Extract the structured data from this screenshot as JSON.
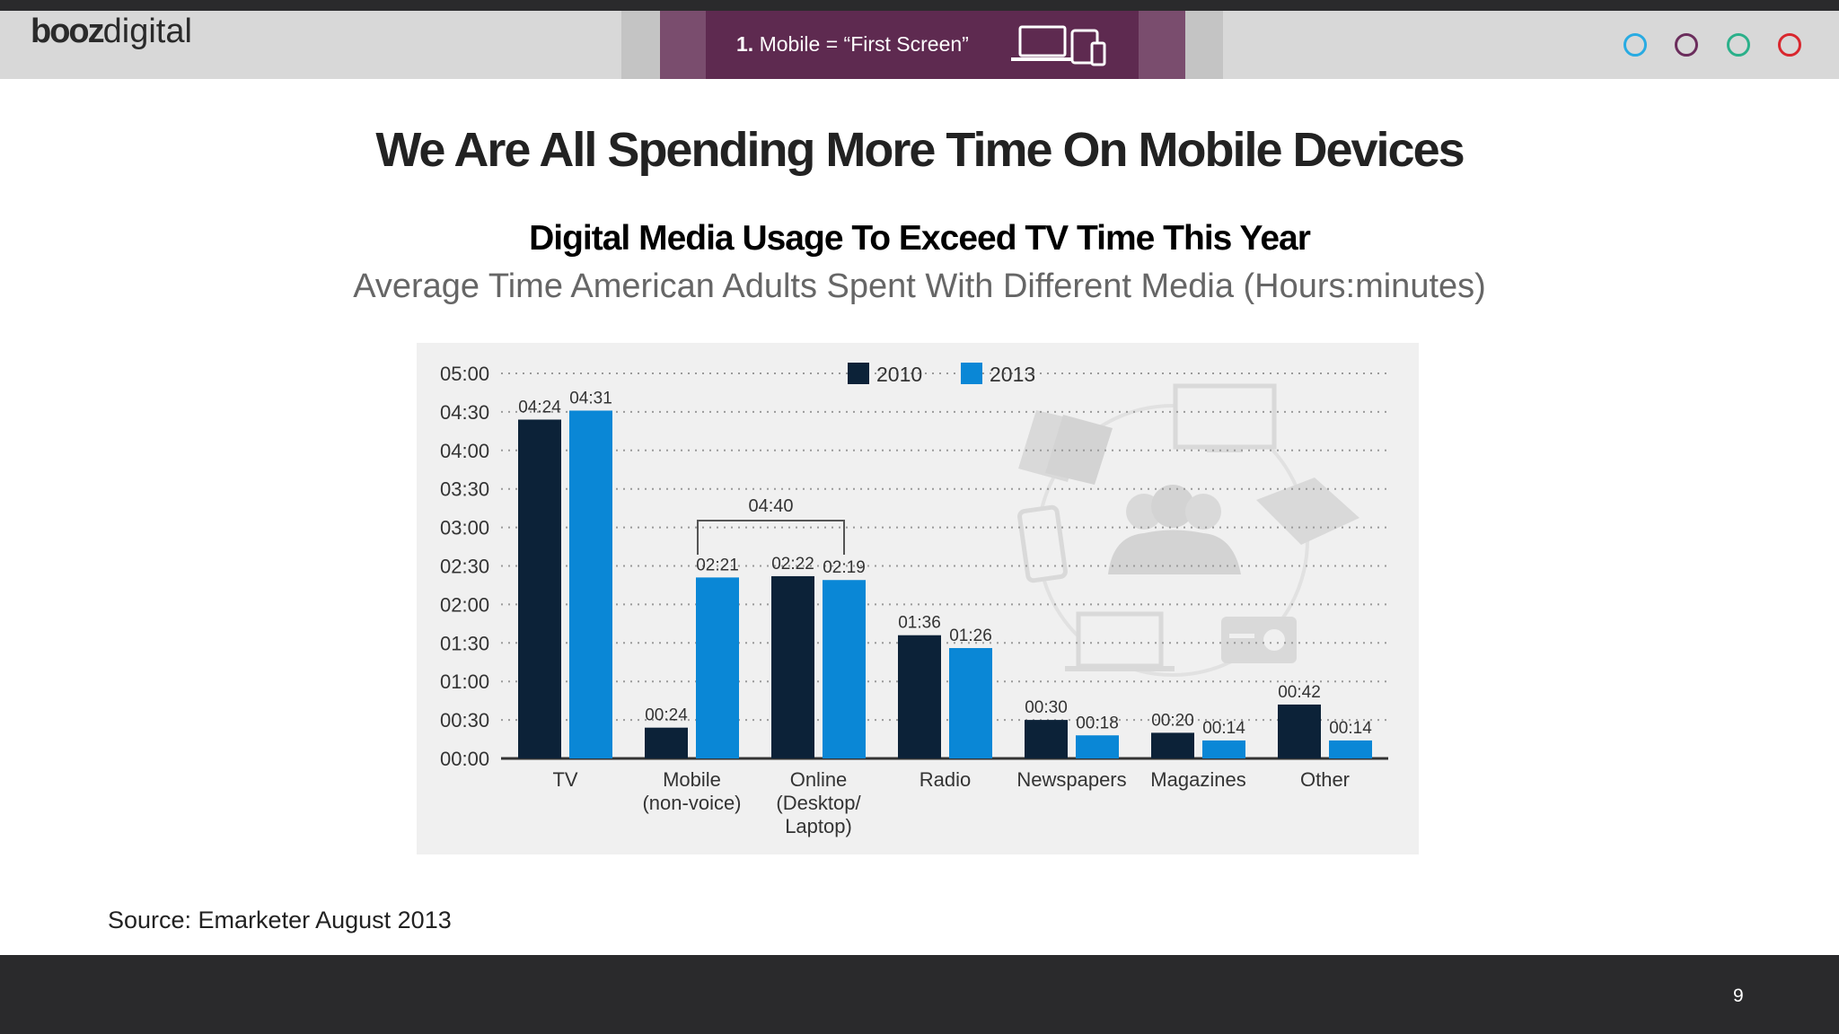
{
  "header": {
    "logo_bold": "booz",
    "logo_light": "digital",
    "tab_number": "1.",
    "tab_text": "Mobile = “First Screen”",
    "device_icon": "devices-icon",
    "nav_dot_colors": [
      "#29abe2",
      "#6b2d5c",
      "#2bb08a",
      "#d9272e"
    ]
  },
  "slide": {
    "title": "We Are All Spending More Time On Mobile Devices",
    "subtitle": "Digital Media Usage To Exceed TV Time This Year",
    "subtitle2": "Average Time American Adults Spent With Different Media (Hours:minutes)",
    "source": "Source: Emarketer August 2013",
    "page_number": "9"
  },
  "chart_data": {
    "type": "bar",
    "title": "",
    "xlabel": "",
    "ylabel": "",
    "categories": [
      [
        "TV"
      ],
      [
        "Mobile",
        "(non-voice)"
      ],
      [
        "Online",
        "(Desktop/",
        "Laptop)"
      ],
      [
        "Radio"
      ],
      [
        "Newspapers"
      ],
      [
        "Magazines"
      ],
      [
        "Other"
      ]
    ],
    "series": [
      {
        "name": "2010",
        "color": "#0c2238",
        "values": [
          264,
          24,
          142,
          96,
          30,
          20,
          42
        ],
        "labels": [
          "04:24",
          "00:24",
          "02:22",
          "01:36",
          "00:30",
          "00:20",
          "00:42"
        ]
      },
      {
        "name": "2013",
        "color": "#0a87d6",
        "values": [
          271,
          141,
          139,
          86,
          18,
          14,
          14
        ],
        "labels": [
          "04:31",
          "02:21",
          "02:19",
          "01:26",
          "00:18",
          "00:14",
          "00:14"
        ]
      }
    ],
    "yticks": [
      "05:00",
      "04:30",
      "04:00",
      "03:30",
      "03:00",
      "02:30",
      "02:00",
      "01:30",
      "01:00",
      "00:30",
      "00:00"
    ],
    "ylim": [
      0,
      300
    ],
    "grid": true,
    "legend": "top",
    "annotation": {
      "text": "04:40",
      "from_category": 1,
      "to_category": 2
    },
    "background_illustration": "media-devices-illustration"
  }
}
